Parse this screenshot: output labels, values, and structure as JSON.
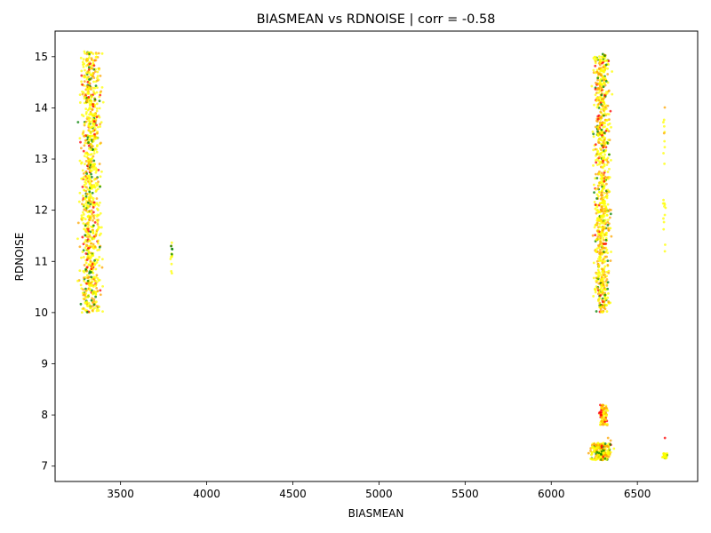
{
  "chart_data": {
    "type": "scatter",
    "title": "BIASMEAN vs RDNOISE | corr = -0.58",
    "xlabel": "BIASMEAN",
    "ylabel": "RDNOISE",
    "xlim": [
      3120,
      6850
    ],
    "ylim": [
      6.7,
      15.5
    ],
    "xticks": [
      3500,
      4000,
      4500,
      5000,
      5500,
      6000,
      6500
    ],
    "yticks": [
      7,
      8,
      9,
      10,
      11,
      12,
      13,
      14,
      15
    ],
    "grid": false,
    "legend": "none",
    "colors": {
      "yellow": "#ffff00",
      "orange": "#ffa500",
      "red": "#ff0000",
      "green": "#008000"
    },
    "clusters": [
      {
        "name": "low-bias-high-noise",
        "x_range": [
          3240,
          3410
        ],
        "y_range": [
          10.0,
          15.1
        ],
        "count": 900,
        "mix": {
          "yellow": 0.6,
          "orange": 0.22,
          "green": 0.1,
          "red": 0.08
        }
      },
      {
        "name": "mid-bias-small",
        "x_range": [
          3785,
          3805
        ],
        "y_range": [
          10.75,
          11.4
        ],
        "count": 14,
        "mix": {
          "yellow": 0.6,
          "orange": 0.1,
          "green": 0.3,
          "red": 0.0
        }
      },
      {
        "name": "high-bias-high-noise",
        "x_range": [
          6230,
          6360
        ],
        "y_range": [
          10.0,
          15.05
        ],
        "count": 850,
        "mix": {
          "yellow": 0.55,
          "orange": 0.3,
          "green": 0.07,
          "red": 0.08
        }
      },
      {
        "name": "far-bias-high-noise",
        "x_range": [
          6640,
          6670
        ],
        "y_range": [
          11.15,
          14.1
        ],
        "count": 22,
        "mix": {
          "yellow": 0.7,
          "orange": 0.2,
          "green": 0.05,
          "red": 0.05
        }
      },
      {
        "name": "high-bias-low-noise-a",
        "x_range": [
          6265,
          6340
        ],
        "y_range": [
          7.8,
          8.2
        ],
        "count": 80,
        "mix": {
          "yellow": 0.35,
          "orange": 0.45,
          "red": 0.2,
          "green": 0.0
        }
      },
      {
        "name": "high-bias-low-noise-b",
        "x_range": [
          6200,
          6380
        ],
        "y_range": [
          7.12,
          7.45
        ],
        "count": 220,
        "mix": {
          "yellow": 0.55,
          "orange": 0.3,
          "red": 0.05,
          "green": 0.1
        }
      },
      {
        "name": "far-bias-low-noise",
        "x_range": [
          6640,
          6680
        ],
        "y_range": [
          7.15,
          7.25
        ],
        "count": 40,
        "mix": {
          "yellow": 0.85,
          "orange": 0.0,
          "red": 0.0,
          "green": 0.15
        }
      }
    ],
    "outliers": [
      {
        "x": 3290,
        "y": 15.1,
        "color": "yellow"
      },
      {
        "x": 3310,
        "y": 14.95,
        "color": "yellow"
      },
      {
        "x": 3360,
        "y": 15.05,
        "color": "yellow"
      },
      {
        "x": 3285,
        "y": 14.8,
        "color": "yellow"
      },
      {
        "x": 6320,
        "y": 8.1,
        "color": "yellow"
      },
      {
        "x": 6330,
        "y": 7.55,
        "color": "orange"
      },
      {
        "x": 6345,
        "y": 7.5,
        "color": "orange"
      },
      {
        "x": 6660,
        "y": 7.55,
        "color": "red"
      }
    ]
  }
}
